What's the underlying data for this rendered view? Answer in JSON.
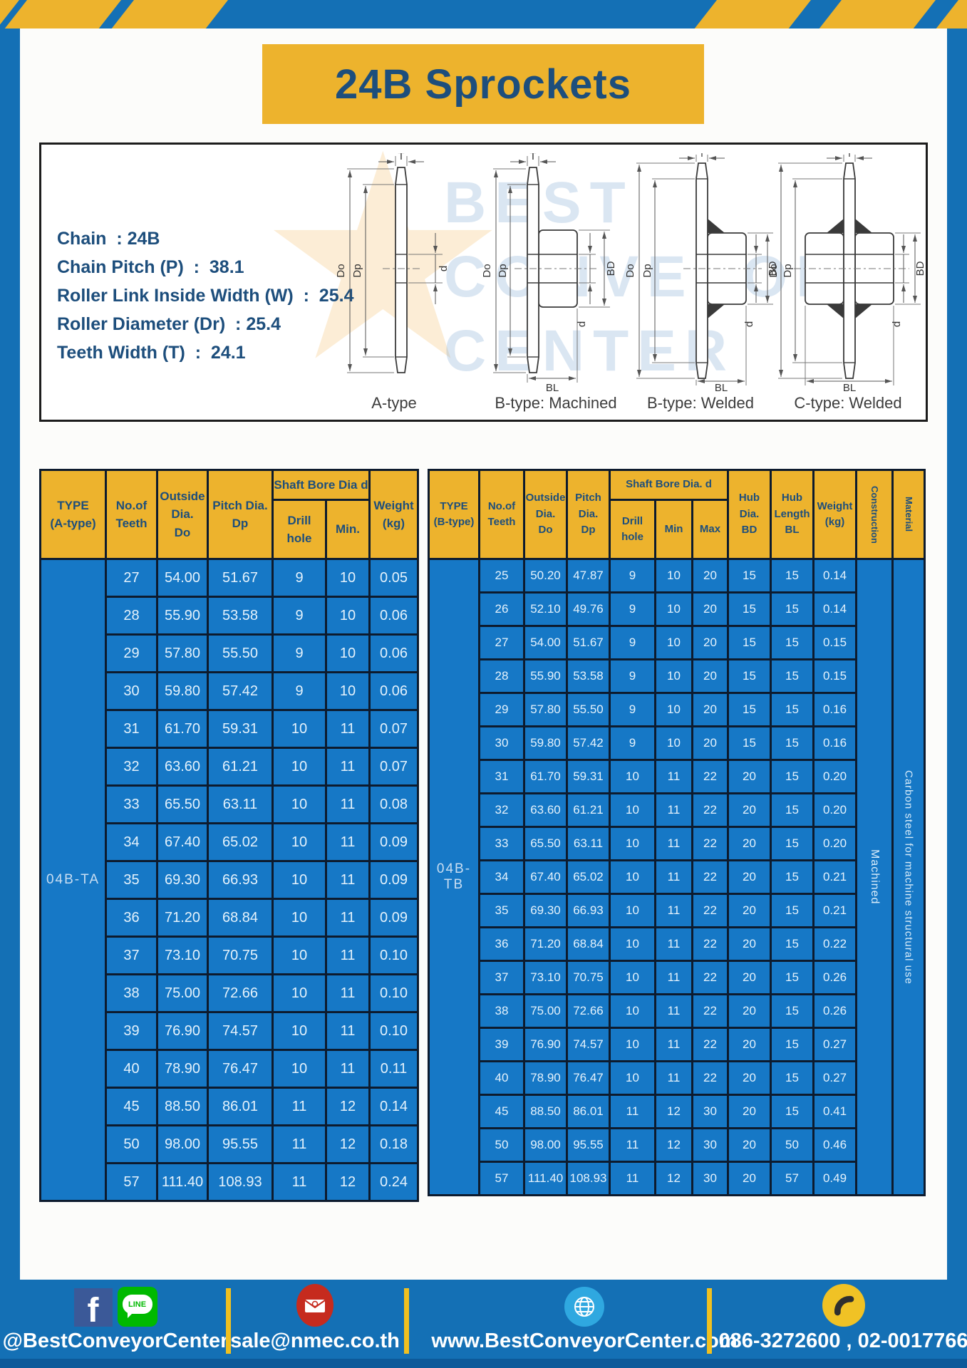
{
  "title": "24B Sprockets",
  "specs": [
    "Chain  : 24B",
    "Chain Pitch (P)  :  38.1",
    "Roller Link Inside Width (W)  :  25.4",
    "Roller Diameter (Dr)  : 25.4",
    "Teeth Width (T)  :  24.1"
  ],
  "diagram": {
    "variants": [
      "A-type",
      "B-type: Machined",
      "B-type: Welded",
      "C-type: Welded"
    ],
    "dims": {
      "T": "T",
      "Do": "Do",
      "Dp": "Dp",
      "d": "d",
      "BD": "BD",
      "BL": "BL"
    },
    "watermark": [
      "BEST",
      "CONVEYOR",
      "CENTER"
    ],
    "watermark_star": "★"
  },
  "table_a": {
    "type_label": "04B-TA",
    "headers": {
      "type": "TYPE\n(A-type)",
      "teeth": "No.of\nTeeth",
      "outside": "Outside\nDia.\nDo",
      "pitch": "Pitch Dia.\nDp",
      "shaft_group": "Shaft Bore Dia d",
      "drill": "Drill hole",
      "min": "Min.",
      "weight": "Weight\n(kg)"
    },
    "rows": [
      [
        "27",
        "54.00",
        "51.67",
        "9",
        "10",
        "0.05"
      ],
      [
        "28",
        "55.90",
        "53.58",
        "9",
        "10",
        "0.06"
      ],
      [
        "29",
        "57.80",
        "55.50",
        "9",
        "10",
        "0.06"
      ],
      [
        "30",
        "59.80",
        "57.42",
        "9",
        "10",
        "0.06"
      ],
      [
        "31",
        "61.70",
        "59.31",
        "10",
        "11",
        "0.07"
      ],
      [
        "32",
        "63.60",
        "61.21",
        "10",
        "11",
        "0.07"
      ],
      [
        "33",
        "65.50",
        "63.11",
        "10",
        "11",
        "0.08"
      ],
      [
        "34",
        "67.40",
        "65.02",
        "10",
        "11",
        "0.09"
      ],
      [
        "35",
        "69.30",
        "66.93",
        "10",
        "11",
        "0.09"
      ],
      [
        "36",
        "71.20",
        "68.84",
        "10",
        "11",
        "0.09"
      ],
      [
        "37",
        "73.10",
        "70.75",
        "10",
        "11",
        "0.10"
      ],
      [
        "38",
        "75.00",
        "72.66",
        "10",
        "11",
        "0.10"
      ],
      [
        "39",
        "76.90",
        "74.57",
        "10",
        "11",
        "0.10"
      ],
      [
        "40",
        "78.90",
        "76.47",
        "10",
        "11",
        "0.11"
      ],
      [
        "45",
        "88.50",
        "86.01",
        "11",
        "12",
        "0.14"
      ],
      [
        "50",
        "98.00",
        "95.55",
        "11",
        "12",
        "0.18"
      ],
      [
        "57",
        "111.40",
        "108.93",
        "11",
        "12",
        "0.24"
      ]
    ]
  },
  "table_b": {
    "type_label": "04B-TB",
    "construction_value": "Machined",
    "material_value": "Carbon steel for machine structural use",
    "headers": {
      "type": "TYPE\n(B-type)",
      "teeth": "No.of\nTeeth",
      "outside": "Outside\nDia.\nDo",
      "pitch": "Pitch\nDia.\nDp",
      "shaft_group": "Shaft Bore Dia.  d",
      "drill": "Drill hole",
      "min": "Min",
      "max": "Max",
      "hub_dia": "Hub\nDia.\nBD",
      "hub_len": "Hub\nLength\nBL",
      "weight": "Weight\n(kg)",
      "construction": "Construction",
      "material": "Material"
    },
    "rows": [
      [
        "25",
        "50.20",
        "47.87",
        "9",
        "10",
        "20",
        "15",
        "15",
        "0.14"
      ],
      [
        "26",
        "52.10",
        "49.76",
        "9",
        "10",
        "20",
        "15",
        "15",
        "0.14"
      ],
      [
        "27",
        "54.00",
        "51.67",
        "9",
        "10",
        "20",
        "15",
        "15",
        "0.15"
      ],
      [
        "28",
        "55.90",
        "53.58",
        "9",
        "10",
        "20",
        "15",
        "15",
        "0.15"
      ],
      [
        "29",
        "57.80",
        "55.50",
        "9",
        "10",
        "20",
        "15",
        "15",
        "0.16"
      ],
      [
        "30",
        "59.80",
        "57.42",
        "9",
        "10",
        "20",
        "15",
        "15",
        "0.16"
      ],
      [
        "31",
        "61.70",
        "59.31",
        "10",
        "11",
        "22",
        "20",
        "15",
        "0.20"
      ],
      [
        "32",
        "63.60",
        "61.21",
        "10",
        "11",
        "22",
        "20",
        "15",
        "0.20"
      ],
      [
        "33",
        "65.50",
        "63.11",
        "10",
        "11",
        "22",
        "20",
        "15",
        "0.20"
      ],
      [
        "34",
        "67.40",
        "65.02",
        "10",
        "11",
        "22",
        "20",
        "15",
        "0.21"
      ],
      [
        "35",
        "69.30",
        "66.93",
        "10",
        "11",
        "22",
        "20",
        "15",
        "0.21"
      ],
      [
        "36",
        "71.20",
        "68.84",
        "10",
        "11",
        "22",
        "20",
        "15",
        "0.22"
      ],
      [
        "37",
        "73.10",
        "70.75",
        "10",
        "11",
        "22",
        "20",
        "15",
        "0.26"
      ],
      [
        "38",
        "75.00",
        "72.66",
        "10",
        "11",
        "22",
        "20",
        "15",
        "0.26"
      ],
      [
        "39",
        "76.90",
        "74.57",
        "10",
        "11",
        "22",
        "20",
        "15",
        "0.27"
      ],
      [
        "40",
        "78.90",
        "76.47",
        "10",
        "11",
        "22",
        "20",
        "15",
        "0.27"
      ],
      [
        "45",
        "88.50",
        "86.01",
        "11",
        "12",
        "30",
        "20",
        "15",
        "0.41"
      ],
      [
        "50",
        "98.00",
        "95.55",
        "11",
        "12",
        "30",
        "20",
        "50",
        "0.46"
      ],
      [
        "57",
        "111.40",
        "108.93",
        "11",
        "12",
        "30",
        "20",
        "57",
        "0.49"
      ]
    ]
  },
  "footer": {
    "facebook_letter": "f",
    "line_label": "LINE",
    "social_text": "@BestConveyorCenter",
    "email_text": "sale@nmec.co.th",
    "website_text": "www.BestConveyorCenter.com",
    "phone_text": "086-3272600 , 02-0017766"
  },
  "colors": {
    "frame_blue": "#1470b5",
    "accent_yellow": "#edb32d",
    "table_cell_blue": "#1678c6",
    "navy_text": "#1d4e7c",
    "footer_dark_strip": "#0d5a9a"
  }
}
